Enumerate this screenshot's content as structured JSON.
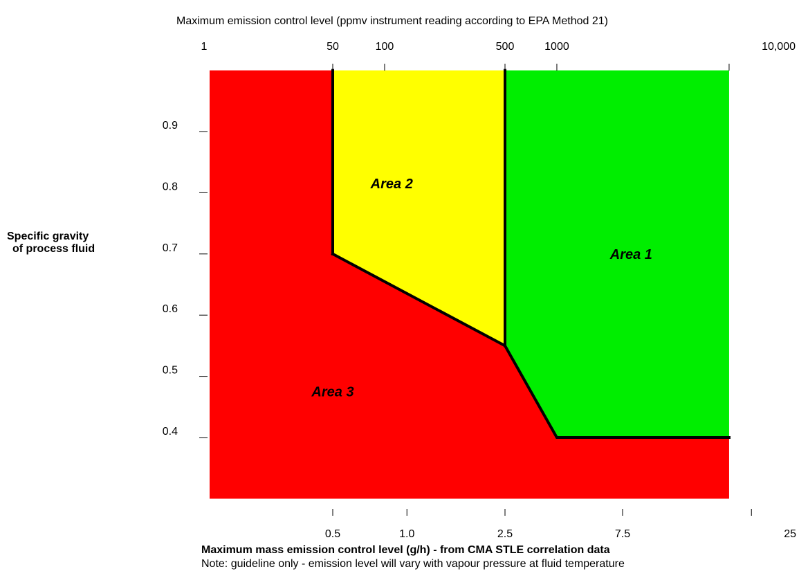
{
  "chart_data": {
    "type": "area",
    "top_axis": {
      "label": "Maximum emission control level (ppmv instrument reading according to EPA Method 21)",
      "scale": "log",
      "ticks": [
        {
          "value": 1,
          "label": "1"
        },
        {
          "value": 50,
          "label": "50"
        },
        {
          "value": 100,
          "label": "100"
        },
        {
          "value": 500,
          "label": "500"
        },
        {
          "value": 1000,
          "label": "1000"
        },
        {
          "value": 10000,
          "label": "10,000"
        }
      ]
    },
    "x_axis": {
      "label": "Maximum mass emission control level (g/h) - from CMA STLE correlation data",
      "scale": "log",
      "ticks": [
        {
          "value": 0.5,
          "label": "0.5"
        },
        {
          "value": 1.0,
          "label": "1.0"
        },
        {
          "value": 2.5,
          "label": "2.5"
        },
        {
          "value": 7.5,
          "label": "7.5"
        },
        {
          "value": 25,
          "label": "25"
        }
      ]
    },
    "y_axis": {
      "label_lines": [
        "Specific gravity",
        "of process fluid"
      ],
      "ylim": [
        0.3,
        1.0
      ],
      "ticks": [
        {
          "value": 0.9,
          "label": "0.9"
        },
        {
          "value": 0.8,
          "label": "0.8"
        },
        {
          "value": 0.7,
          "label": "0.7"
        },
        {
          "value": 0.6,
          "label": "0.6"
        },
        {
          "value": 0.5,
          "label": "0.5"
        },
        {
          "value": 0.4,
          "label": "0.4"
        }
      ]
    },
    "note": "Note: guideline only - emission level will vary with vapour pressure at fluid temperature",
    "regions": [
      {
        "name": "Area 1",
        "color": "#00ee00",
        "ppmv_polygon": [
          [
            500,
            1.0
          ],
          [
            10000,
            1.0
          ],
          [
            10000,
            0.4
          ],
          [
            1000,
            0.4
          ],
          [
            500,
            0.55
          ]
        ]
      },
      {
        "name": "Area 2",
        "color": "#ffff00",
        "ppmv_polygon": [
          [
            50,
            1.0
          ],
          [
            500,
            1.0
          ],
          [
            500,
            0.55
          ],
          [
            50,
            0.7
          ]
        ]
      },
      {
        "name": "Area 3",
        "color": "#ff0000",
        "ppmv_polygon": [
          [
            1,
            1.0
          ],
          [
            50,
            1.0
          ],
          [
            50,
            0.7
          ],
          [
            500,
            0.55
          ],
          [
            1000,
            0.4
          ],
          [
            10000,
            0.4
          ],
          [
            10000,
            0.3
          ],
          [
            1,
            0.3
          ]
        ]
      }
    ],
    "boundary_lines": [
      {
        "name": "area2-left-boundary",
        "ppmv": [
          [
            50,
            1.0
          ],
          [
            50,
            0.7
          ]
        ]
      },
      {
        "name": "area1-left-boundary",
        "ppmv": [
          [
            500,
            1.0
          ],
          [
            500,
            0.55
          ]
        ]
      },
      {
        "name": "area3-upper-boundary",
        "ppmv": [
          [
            50,
            0.7
          ],
          [
            500,
            0.55
          ],
          [
            1000,
            0.4
          ],
          [
            10000,
            0.4
          ]
        ]
      }
    ],
    "region_labels": [
      {
        "text": "Area 1",
        "ppmv": 2700,
        "y": 0.7
      },
      {
        "text": "Area 2",
        "ppmv": 110,
        "y": 0.815
      },
      {
        "text": "Area 3",
        "ppmv": 50,
        "y": 0.475
      }
    ]
  }
}
